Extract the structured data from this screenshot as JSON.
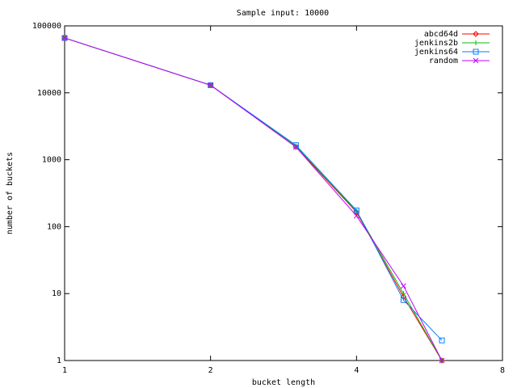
{
  "chart_data": {
    "type": "line",
    "title": "Sample input: 10000",
    "x_label": "bucket length",
    "y_label": "number of buckets",
    "xscale": "log",
    "yscale": "log",
    "x": [
      1,
      2,
      3,
      4,
      5,
      6
    ],
    "series": [
      {
        "name": "abcd64d",
        "color": "#ff0000",
        "marker": "diamond",
        "values": [
          66000,
          13000,
          1550,
          165,
          9,
          1
        ]
      },
      {
        "name": "jenkins2b",
        "color": "#00c000",
        "marker": "plus",
        "values": [
          66000,
          13000,
          1600,
          170,
          10,
          1
        ]
      },
      {
        "name": "jenkins64",
        "color": "#0080ff",
        "marker": "square",
        "values": [
          66000,
          13000,
          1650,
          175,
          8,
          2
        ]
      },
      {
        "name": "random",
        "color": "#c000ff",
        "marker": "cross",
        "values": [
          66000,
          13000,
          1550,
          145,
          13,
          1
        ]
      }
    ],
    "xlim": [
      1,
      8
    ],
    "xticks": [
      1,
      2,
      4,
      8
    ],
    "ylim": [
      1,
      100000
    ],
    "yticks": [
      1,
      10,
      100,
      1000,
      10000,
      100000
    ],
    "legend": "top-right"
  }
}
